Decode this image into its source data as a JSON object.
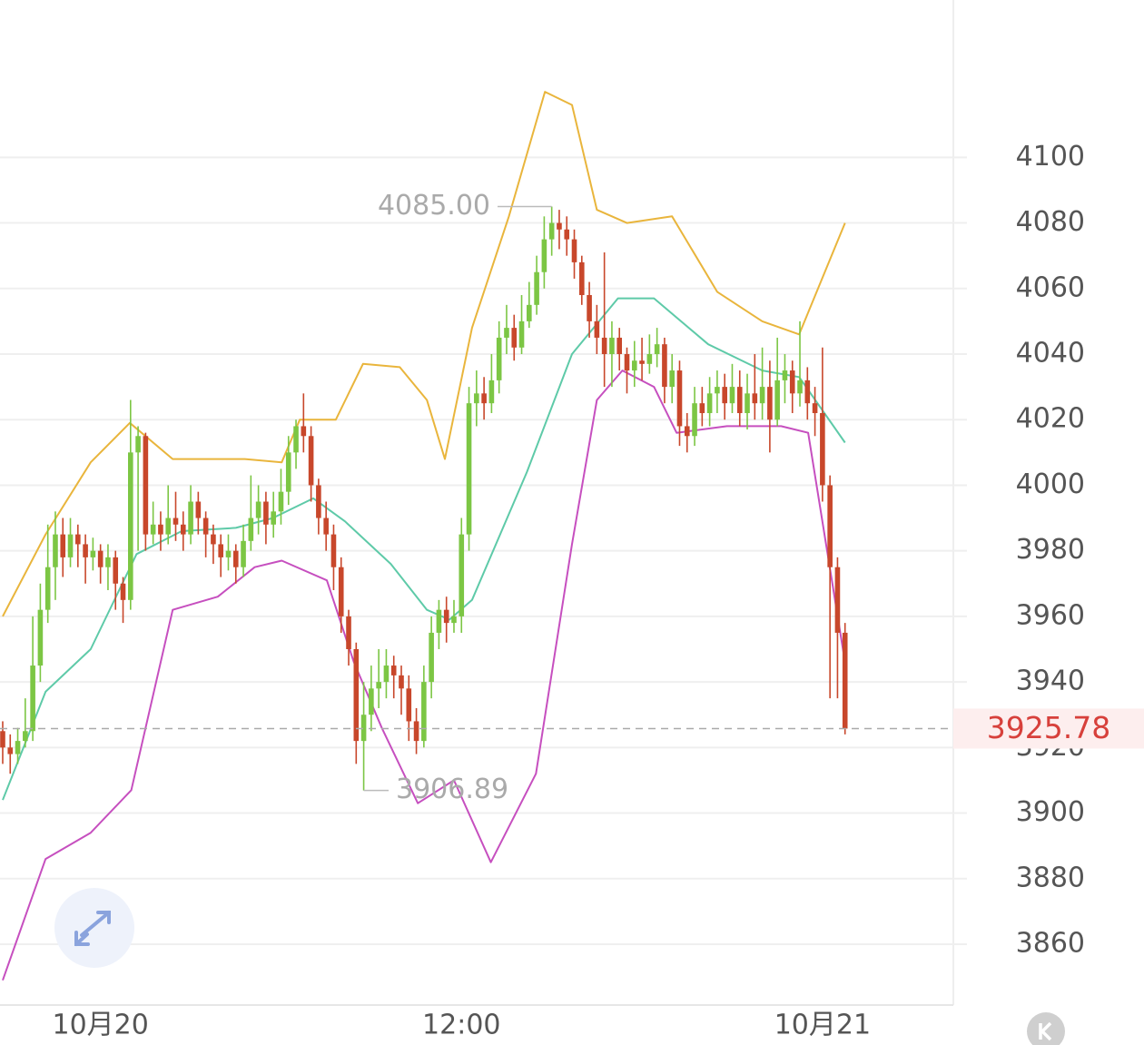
{
  "chart_data": {
    "type": "candlestick",
    "up_color": "#7cc644",
    "down_color": "#c8472b",
    "xlim": [
      -0.36,
      126.4
    ],
    "xticks": [
      {
        "value": 13,
        "label": "10月20"
      },
      {
        "value": 61,
        "label": "12:00"
      },
      {
        "value": 109,
        "label": "10月21"
      }
    ],
    "ylim": [
      3842,
      4148
    ],
    "yticks": [
      3860,
      3880,
      3900,
      3920,
      3940,
      3960,
      3980,
      4000,
      4020,
      4040,
      4060,
      4080,
      4100
    ],
    "grid": true,
    "open": [
      3925,
      3920,
      3918,
      3922,
      3925,
      3945,
      3962,
      3975,
      3985,
      3978,
      3985,
      3982,
      3978,
      3980,
      3975,
      3978,
      3970,
      3965,
      4010,
      4015,
      3985,
      3988,
      3985,
      3990,
      3988,
      3985,
      3995,
      3990,
      3985,
      3982,
      3978,
      3980,
      3975,
      3983,
      3990,
      3995,
      3988,
      3992,
      3998,
      4010,
      4018,
      4015,
      4000,
      3990,
      3985,
      3975,
      3960,
      3950,
      3922,
      3930,
      3938,
      3940,
      3945,
      3942,
      3938,
      3928,
      3922,
      3940,
      3955,
      3962,
      3958,
      3960,
      3985,
      4025,
      4028,
      4025,
      4032,
      4045,
      4048,
      4042,
      4050,
      4055,
      4065,
      4075,
      4080,
      4078,
      4075,
      4068,
      4058,
      4050,
      4045,
      4040,
      4045,
      4040,
      4035,
      4038,
      4037,
      4040,
      4043,
      4030,
      4035,
      4018,
      4015,
      4025,
      4022,
      4028,
      4030,
      4025,
      4030,
      4022,
      4028,
      4025,
      4030,
      4020,
      4032,
      4035,
      4028,
      4032,
      4025,
      4022,
      4000,
      3975,
      3955
    ],
    "high": [
      3928,
      3924,
      3926,
      3935,
      3960,
      3970,
      3988,
      3992,
      3990,
      3990,
      3988,
      3985,
      3984,
      3982,
      3982,
      3980,
      3972,
      4026,
      4018,
      4016,
      3995,
      3992,
      4000,
      3998,
      3992,
      4000,
      3998,
      3992,
      3988,
      3985,
      3985,
      3982,
      3988,
      4003,
      4000,
      3998,
      3998,
      4005,
      4015,
      4020,
      4028,
      4018,
      4002,
      3995,
      3988,
      3978,
      3962,
      3952,
      3940,
      3945,
      3950,
      3950,
      3948,
      3945,
      3942,
      3932,
      3945,
      3960,
      3965,
      3966,
      3965,
      3990,
      4030,
      4035,
      4033,
      4040,
      4050,
      4055,
      4052,
      4058,
      4062,
      4070,
      4082,
      4085,
      4084,
      4082,
      4078,
      4070,
      4062,
      4055,
      4071,
      4050,
      4048,
      4042,
      4044,
      4045,
      4046,
      4048,
      4045,
      4040,
      4038,
      4022,
      4030,
      4030,
      4033,
      4035,
      4034,
      4037,
      4035,
      4034,
      4040,
      4042,
      4038,
      4045,
      4040,
      4038,
      4050,
      4036,
      4030,
      4042,
      4003,
      3978,
      3958
    ],
    "low": [
      3915,
      3912,
      3915,
      3920,
      3922,
      3940,
      3958,
      3965,
      3972,
      3975,
      3975,
      3970,
      3974,
      3970,
      3968,
      3962,
      3958,
      3962,
      3980,
      3980,
      3982,
      3980,
      3982,
      3983,
      3980,
      3982,
      3985,
      3978,
      3976,
      3972,
      3974,
      3970,
      3972,
      3980,
      3985,
      3982,
      3984,
      3988,
      3994,
      4005,
      4010,
      3995,
      3985,
      3980,
      3968,
      3955,
      3945,
      3915,
      3906.89,
      3925,
      3932,
      3935,
      3935,
      3930,
      3922,
      3918,
      3920,
      3935,
      3950,
      3952,
      3955,
      3955,
      3980,
      4018,
      4020,
      4022,
      4028,
      4040,
      4038,
      4040,
      4048,
      4052,
      4060,
      4070,
      4072,
      4070,
      4063,
      4055,
      4045,
      4040,
      4030,
      4030,
      4035,
      4028,
      4030,
      4032,
      4034,
      4036,
      4025,
      4025,
      4012,
      4010,
      4012,
      4018,
      4018,
      4022,
      4020,
      4022,
      4018,
      4017,
      4020,
      4020,
      4010,
      4018,
      4025,
      4022,
      4024,
      4020,
      4015,
      3995,
      3935,
      3935,
      3924
    ],
    "close": [
      3920,
      3918,
      3922,
      3925,
      3945,
      3962,
      3975,
      3985,
      3978,
      3985,
      3982,
      3978,
      3980,
      3975,
      3978,
      3970,
      3965,
      4010,
      4015,
      3985,
      3988,
      3985,
      3990,
      3988,
      3985,
      3995,
      3990,
      3985,
      3982,
      3978,
      3980,
      3975,
      3983,
      3990,
      3995,
      3988,
      3992,
      3998,
      4010,
      4018,
      4015,
      4000,
      3990,
      3985,
      3975,
      3960,
      3950,
      3922,
      3930,
      3938,
      3940,
      3945,
      3942,
      3938,
      3928,
      3922,
      3940,
      3955,
      3962,
      3958,
      3960,
      3985,
      4025,
      4028,
      4025,
      4032,
      4045,
      4048,
      4042,
      4050,
      4055,
      4065,
      4075,
      4080,
      4078,
      4075,
      4068,
      4058,
      4050,
      4045,
      4040,
      4045,
      4040,
      4035,
      4038,
      4037,
      4040,
      4043,
      4030,
      4035,
      4018,
      4015,
      4025,
      4022,
      4028,
      4030,
      4025,
      4030,
      4022,
      4028,
      4025,
      4030,
      4020,
      4032,
      4035,
      4028,
      4032,
      4025,
      4022,
      4000,
      3975,
      3955,
      3925.78
    ],
    "bands": [
      {
        "color": "#e9b53c",
        "x": [
          0,
          5.7,
          11.7,
          16.9,
          22.6,
          32.2,
          37.1,
          39.5,
          44.3,
          47.9,
          52.8,
          56.4,
          58.8,
          62.4,
          67.3,
          72.1,
          75.7,
          79,
          83,
          89,
          95,
          101,
          105.9,
          112
        ],
        "values": [
          3960,
          3985,
          4007,
          4019,
          4008,
          4008,
          4007,
          4020,
          4020,
          4037,
          4036,
          4026,
          4008,
          4048,
          4082,
          4120,
          4116,
          4084,
          4080,
          4082,
          4059,
          4050,
          4046,
          4080
        ]
      },
      {
        "color": "#5ecaa8",
        "x": [
          0,
          5.7,
          11.7,
          17.8,
          23.8,
          31,
          35.9,
          41.3,
          45.5,
          51.6,
          56.4,
          59.4,
          62.4,
          69.7,
          75.7,
          81.8,
          86.6,
          93.8,
          101,
          105.9,
          112
        ],
        "values": [
          3904,
          3937,
          3950,
          3979,
          3986,
          3987,
          3990,
          3996,
          3989,
          3976,
          3962,
          3959,
          3965,
          4004,
          4040,
          4057,
          4057,
          4043,
          4035,
          4033,
          4013
        ]
      },
      {
        "color": "#c64fbf",
        "x": [
          0,
          5.7,
          11.7,
          17.1,
          22.6,
          28.6,
          33.5,
          37.1,
          43.1,
          46.7,
          50.4,
          55.2,
          60,
          64.9,
          70.9,
          75.7,
          79,
          82.4,
          86.6,
          89.6,
          96.3,
          103.5,
          107.1,
          112
        ],
        "values": [
          3849,
          3886,
          3894,
          3907,
          3962,
          3966,
          3975,
          3977,
          3971,
          3946,
          3926,
          3903,
          3910,
          3885,
          3912,
          3982,
          4026,
          4035,
          4030,
          4016,
          4018,
          4018,
          4016,
          3946
        ]
      }
    ],
    "high_mark": {
      "value": 4085,
      "label": "4085.00"
    },
    "low_mark": 3906.89,
    "last_price": 3925.78
  }
}
